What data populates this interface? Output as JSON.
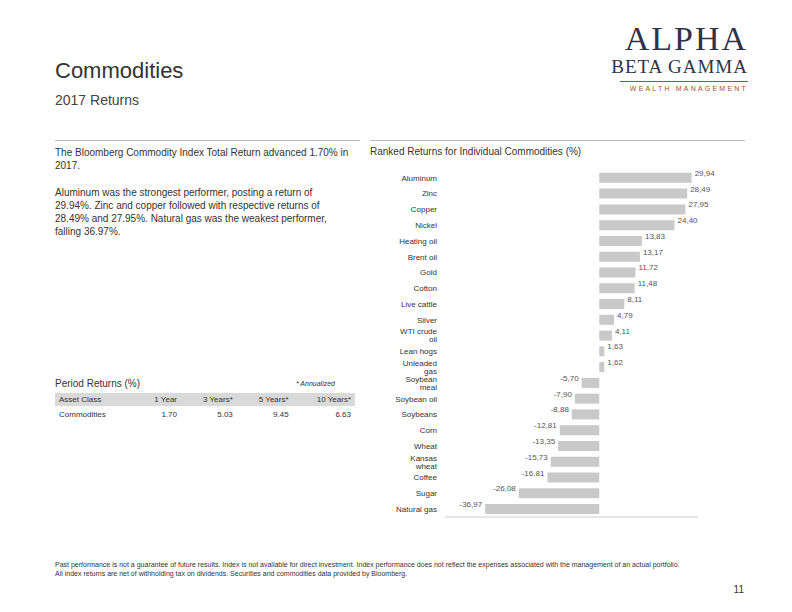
{
  "header": {
    "title": "Commodities",
    "subtitle": "2017 Returns"
  },
  "logo": {
    "line1": "ALPHA",
    "line2": "BETA GAMMA",
    "line3": "WEALTH MANAGEMENT"
  },
  "summary": [
    "The Bloomberg Commodity Index Total Return advanced 1.70% in 2017.",
    "Aluminum was the strongest performer, posting a return of 29.94%. Zinc and copper followed with respective returns of 28.49% and 27.95%. Natural gas was the weakest performer, falling 36.97%."
  ],
  "table": {
    "title": "Period Returns (%)",
    "note": "* Annualized",
    "columns": [
      "Asset Class",
      "1 Year",
      "3 Years*",
      "5 Years*",
      "10 Years*"
    ],
    "rows": [
      [
        "Commodities",
        "1.70",
        "5.03",
        "9.45",
        "6.63"
      ]
    ]
  },
  "chart_data": {
    "type": "bar",
    "orientation": "horizontal",
    "title": "Ranked Returns for Individual Commodities (%)",
    "categories": [
      "Aluminum",
      "Zinc",
      "Copper",
      "Nickel",
      "Heating oil",
      "Brent oil",
      "Gold",
      "Cotton",
      "Live cattle",
      "Silver",
      "WTI crude oil",
      "Lean hogs",
      "Unleaded gas",
      "Soybean meal",
      "Soybean oil",
      "Soybeans",
      "Corn",
      "Wheat",
      "Kansas wheat",
      "Coffee",
      "Sugar",
      "Natural gas"
    ],
    "values": [
      29.94,
      28.49,
      27.95,
      24.4,
      13.83,
      13.17,
      11.72,
      11.48,
      8.11,
      4.79,
      4.11,
      1.63,
      1.62,
      -5.7,
      -7.9,
      -8.88,
      -12.81,
      -13.35,
      -15.73,
      -16.81,
      -26.08,
      -36.97
    ],
    "value_labels": [
      "29,94",
      "28,49",
      "27,95",
      "24,40",
      "13,83",
      "13,17",
      "11,72",
      "11,48",
      "8,11",
      "4,79",
      "4,11",
      "1,63",
      "1,62",
      "-5,70",
      "-7,90",
      "-8,88",
      "-12,81",
      "-13,35",
      "-15,73",
      "-16,81",
      "-26,08",
      "-36,97"
    ],
    "color": "#c9c9c9",
    "xlim": [
      -50,
      32
    ],
    "data_labels": true,
    "tick_labels": "y",
    "grid": false
  },
  "footer": [
    "Past performance is not a guarantee of future results. Index is not available for direct investment. Index performance does not reflect the expenses associated with the management of an actual portfolio.",
    "All index returns are net of withholding tax on dividends. Securities and commodities data provided by Bloomberg."
  ],
  "page": "11"
}
